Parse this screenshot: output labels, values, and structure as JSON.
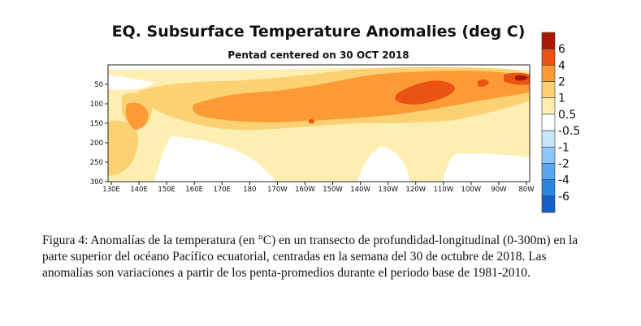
{
  "chart_data": {
    "type": "heatmap",
    "title": "EQ. Subsurface Temperature Anomalies (deg C)",
    "subtitle": "Pentad centered on 30 OCT 2018",
    "x_ticks": [
      "130E",
      "140E",
      "150E",
      "160E",
      "170E",
      "180",
      "170W",
      "160W",
      "150W",
      "140W",
      "130W",
      "120W",
      "110W",
      "100W",
      "90W",
      "80W"
    ],
    "y_ticks": [
      "50",
      "100",
      "150",
      "200",
      "250",
      "300"
    ],
    "xlim": [
      "130E",
      "80W"
    ],
    "ylim": [
      0,
      300
    ],
    "y_inverted": true,
    "colorbar": {
      "labels": [
        "6",
        "4",
        "2",
        "1",
        "0.5",
        "-0.5",
        "-1",
        "-2",
        "-4",
        "-6"
      ],
      "levels": [
        -6,
        -4,
        -2,
        -1,
        -0.5,
        0.5,
        1,
        2,
        4,
        6
      ],
      "colors": [
        "#1560c8",
        "#2a84e0",
        "#58a8f0",
        "#8ec8f8",
        "#c8e6fb",
        "#ffffff",
        "#fdefb2",
        "#fcd174",
        "#fc9a36",
        "#ea5312",
        "#a81a06"
      ]
    },
    "anomaly_regions": [
      {
        "level": "2 to 4",
        "area": "main core band",
        "x_range": [
          "170E",
          "90W"
        ],
        "depth_range": [
          50,
          150
        ]
      },
      {
        "level": "4 to 6",
        "area": "core maximum",
        "x_range": [
          "135W",
          "108W"
        ],
        "depth_range": [
          70,
          115
        ]
      },
      {
        "level": "above 6",
        "area": "eastern surface",
        "x_range": [
          "92W",
          "80W"
        ],
        "depth_range": [
          30,
          60
        ]
      },
      {
        "level": "1 to 2",
        "area": "western edge",
        "x_range": [
          "130E",
          "155E"
        ],
        "depth_range": [
          100,
          200
        ]
      },
      {
        "level": "0.5 to 1",
        "area": "broad background",
        "x_range": [
          "130E",
          "80W"
        ],
        "depth_range": [
          10,
          300
        ]
      }
    ]
  },
  "caption": "Figura 4: Anomalías de la temperatura (en °C) en un transecto de profundidad-longitudinal (0-300m) en la parte superior del océano Pacífico ecuatorial, centradas en la semana del 30 de octubre de 2018. Las anomalías son variaciones a partir de los penta-promedios durante el periodo base de 1981-2010."
}
